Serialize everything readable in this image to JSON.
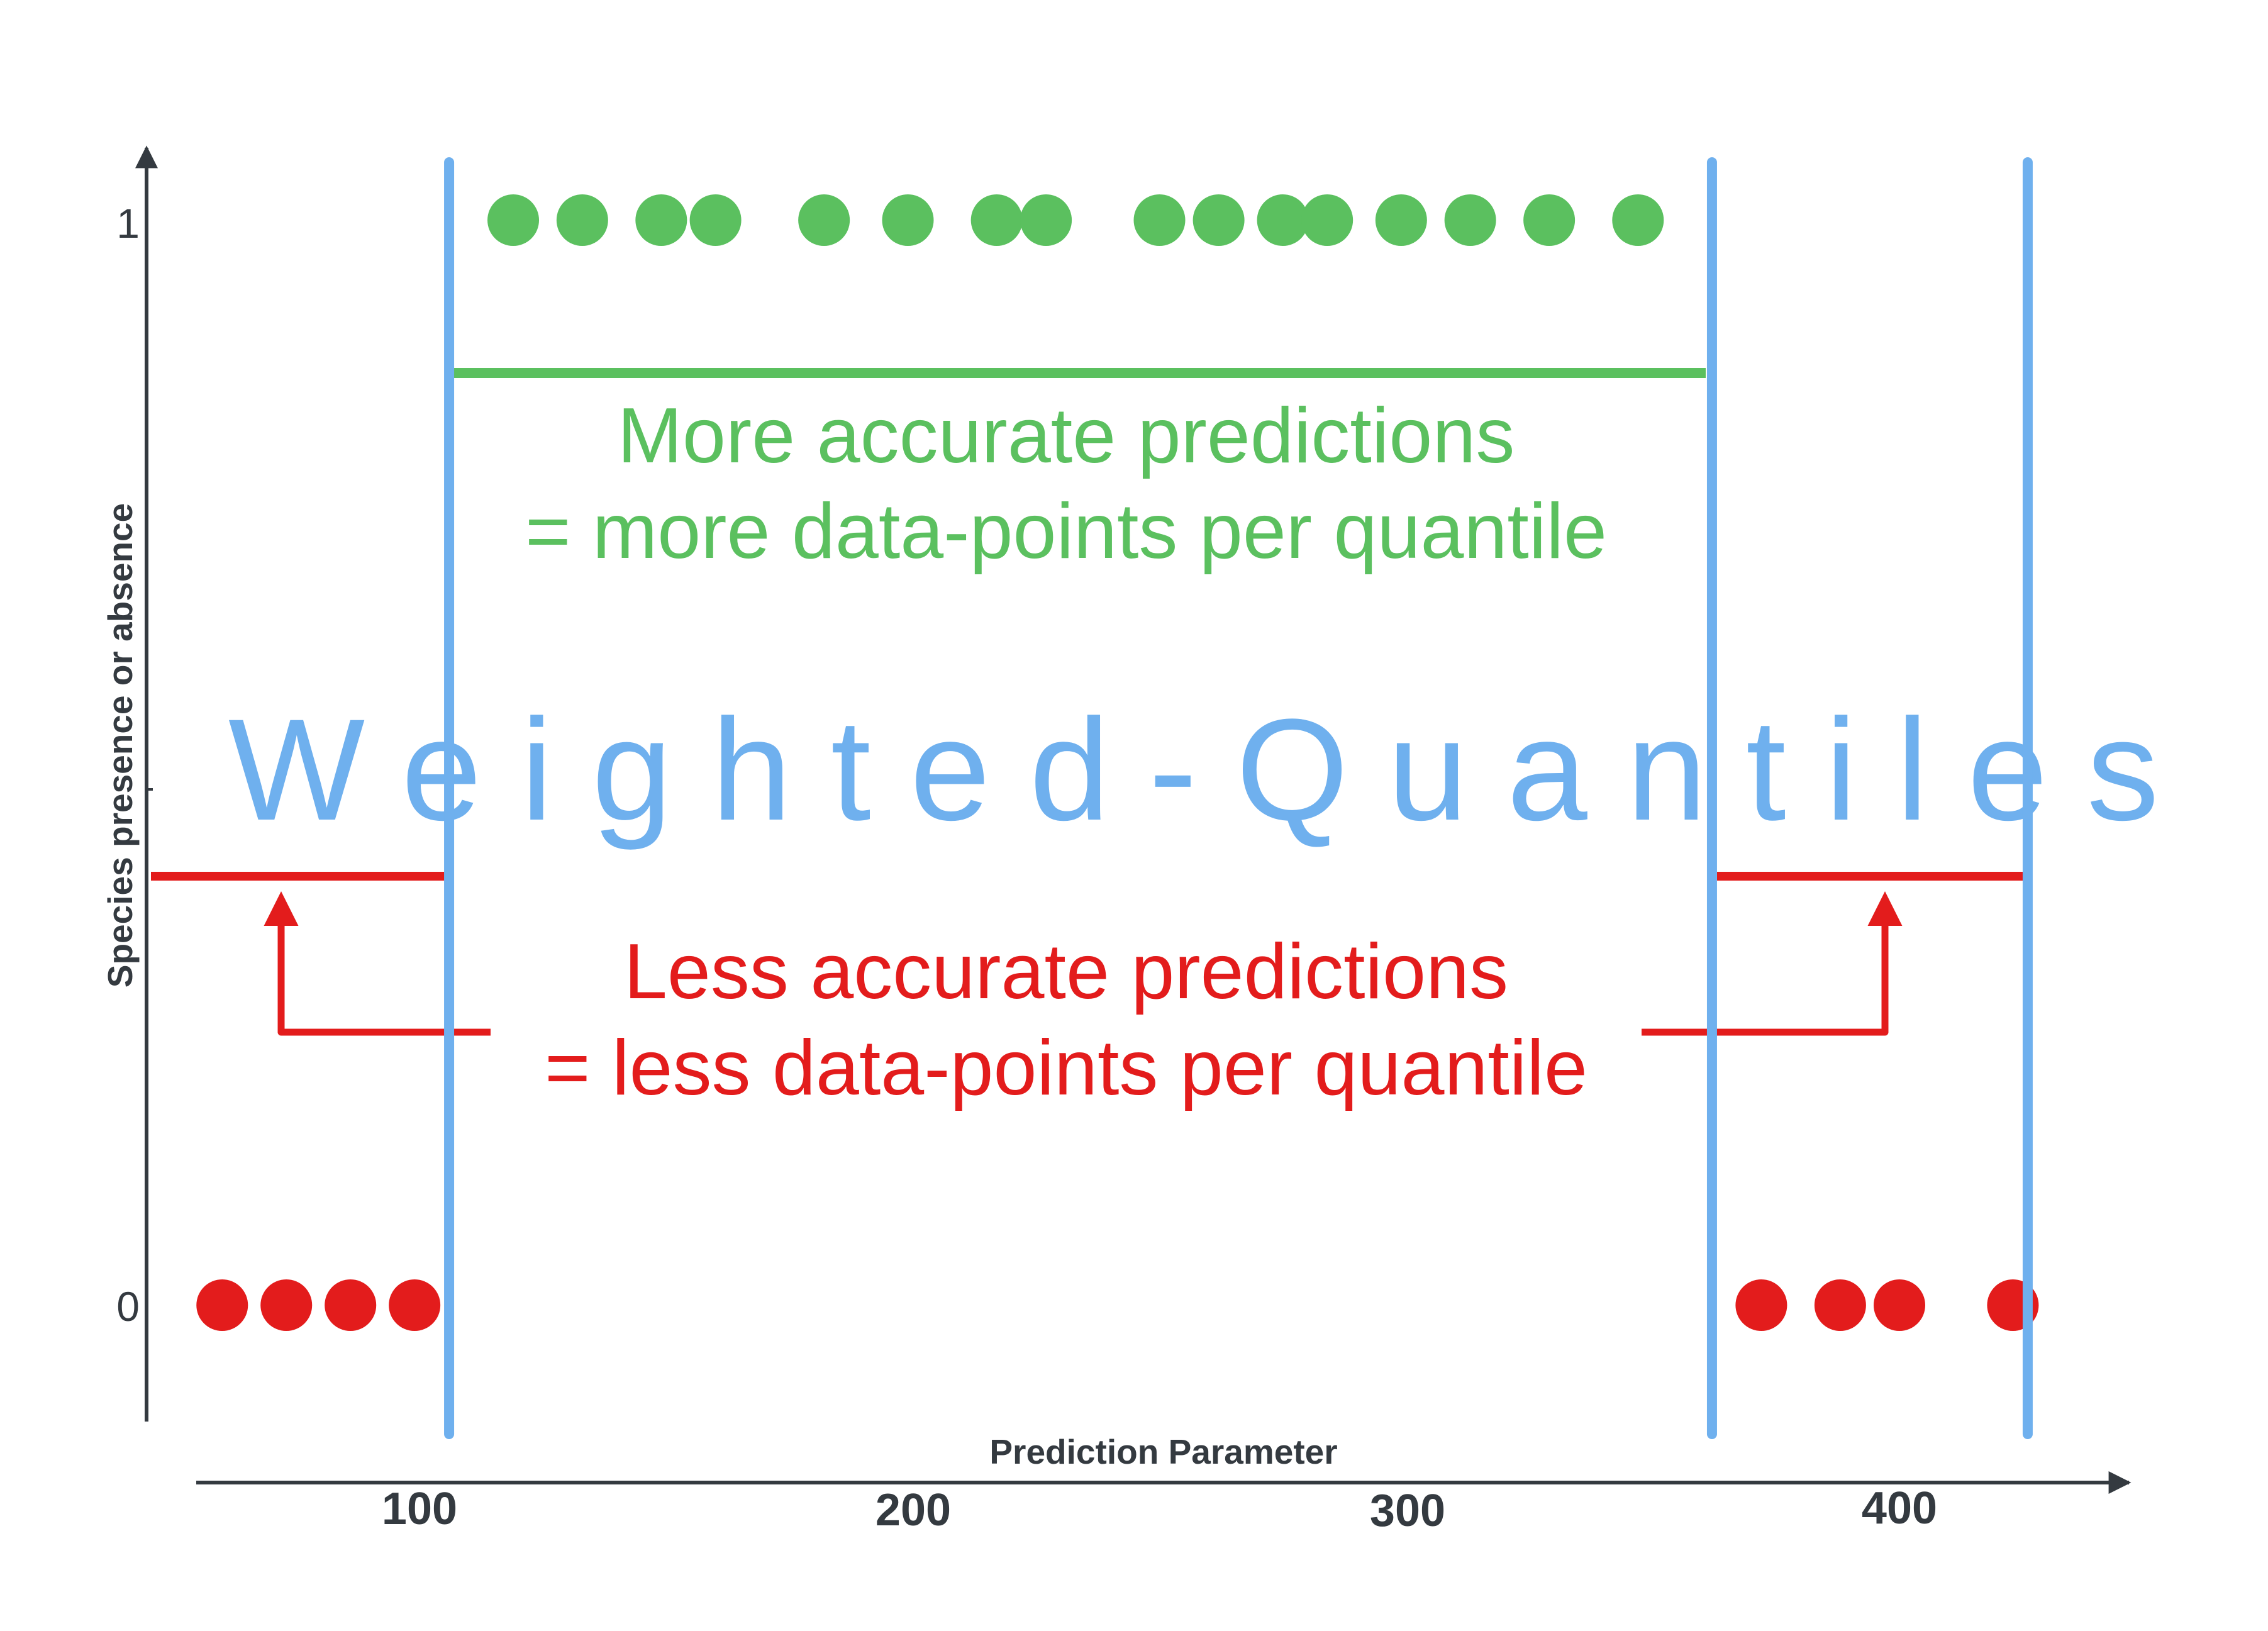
{
  "title": "Weighted-Quantiles",
  "axes": {
    "xlabel": "Prediction Parameter",
    "ylabel": "Species presence or absence",
    "x_ticks": [
      "100",
      "200",
      "300",
      "400"
    ],
    "y_ticks": [
      "1",
      "0"
    ]
  },
  "annotations": {
    "good_line1": "More accurate predictions",
    "good_line2": "= more data-points per quantile",
    "bad_line1": "Less accurate predictions",
    "bad_line2": "= less data-points per quantile"
  },
  "colors": {
    "presence": "#5bc05f",
    "absence": "#e31c1c",
    "quantile_line": "#6fb0ee",
    "axis": "#343a40"
  },
  "chart_data": {
    "type": "scatter",
    "xlabel": "Prediction Parameter",
    "ylabel": "Species presence or absence",
    "xlim": [
      55,
      440
    ],
    "ylim": [
      -0.13,
      1.16
    ],
    "x_ticks": [
      100,
      200,
      300,
      400
    ],
    "y_ticks": [
      0,
      1
    ],
    "series": [
      {
        "values": [
          {
            "x": 119,
            "y": 1
          },
          {
            "x": 133,
            "y": 1
          },
          {
            "x": 149,
            "y": 1
          },
          {
            "x": 160,
            "y": 1
          },
          {
            "x": 182,
            "y": 1
          },
          {
            "x": 199,
            "y": 1
          },
          {
            "x": 217,
            "y": 1
          },
          {
            "x": 227,
            "y": 1
          },
          {
            "x": 250,
            "y": 1
          },
          {
            "x": 262,
            "y": 1
          },
          {
            "x": 275,
            "y": 1
          },
          {
            "x": 284,
            "y": 1
          },
          {
            "x": 299,
            "y": 1
          },
          {
            "x": 313,
            "y": 1
          },
          {
            "x": 329,
            "y": 1
          },
          {
            "x": 347,
            "y": 1
          }
        ]
      },
      {
        "values": [
          {
            "x": 60,
            "y": 0
          },
          {
            "x": 73,
            "y": 0
          },
          {
            "x": 86,
            "y": 0
          },
          {
            "x": 99,
            "y": 0
          },
          {
            "x": 372,
            "y": 0
          },
          {
            "x": 388,
            "y": 0
          },
          {
            "x": 400,
            "y": 0
          },
          {
            "x": 423,
            "y": 0
          }
        ]
      }
    ],
    "quantile_boundaries": [
      106,
      362,
      426
    ],
    "quantile_mean_levels": [
      0.46,
      0.86,
      0.46
    ]
  }
}
